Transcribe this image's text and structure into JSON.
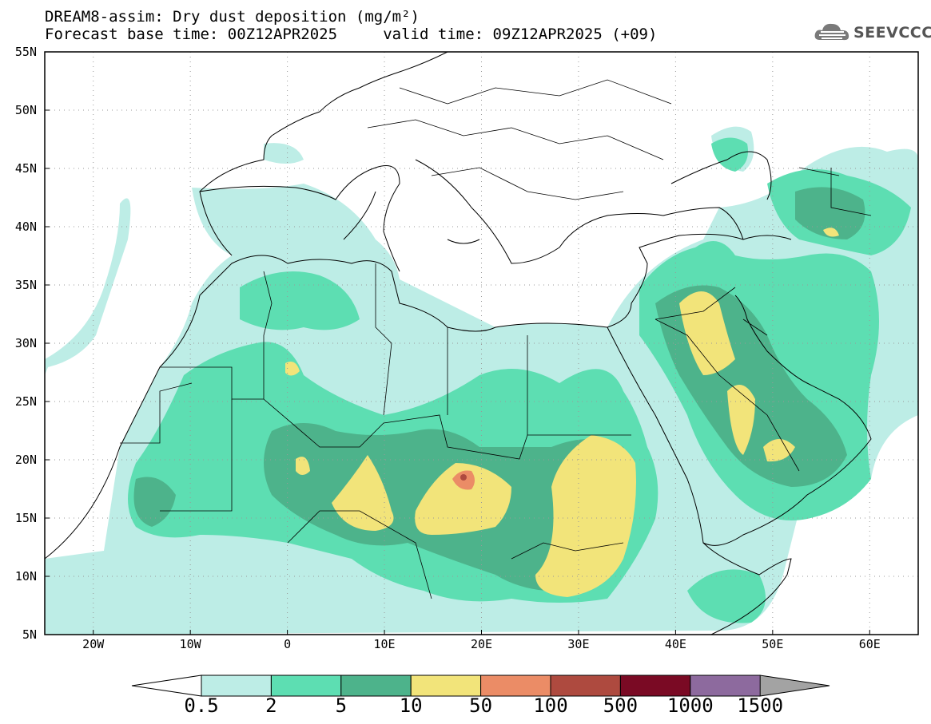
{
  "title": {
    "line1": "DREAM8-assim: Dry dust deposition (mg/m²)",
    "line2": "Forecast base time: 00Z12APR2025     valid time: 09Z12APR2025 (+09)"
  },
  "logo": {
    "text": "SEEVCCC",
    "icon": "cloud-icon"
  },
  "axes": {
    "lat_labels": [
      "55N",
      "50N",
      "45N",
      "40N",
      "35N",
      "30N",
      "25N",
      "20N",
      "15N",
      "10N",
      "5N"
    ],
    "lon_labels": [
      "20W",
      "10W",
      "0",
      "10E",
      "20E",
      "30E",
      "40E",
      "50E",
      "60E"
    ],
    "lat_range": [
      5,
      55
    ],
    "lon_range": [
      -25,
      65
    ],
    "grid": true
  },
  "colorbar": {
    "labels": [
      "0.5",
      "2",
      "5",
      "10",
      "50",
      "100",
      "500",
      "1000",
      "1500"
    ],
    "colors": [
      "#bdede6",
      "#5ddeb2",
      "#4db38b",
      "#f2e47a",
      "#eb8c66",
      "#ae4a3f",
      "#7a0a24",
      "#8d6a9e"
    ],
    "under_color": "#ffffff",
    "over_color": "#a3a3a3"
  },
  "map": {
    "region": "North Africa, Middle East and Europe",
    "dust_colors": {
      "c1": "#bdede6",
      "c2": "#5ddeb2",
      "c3": "#4db38b",
      "c4": "#f2e47a",
      "c5": "#eb8c66",
      "c6": "#ae4a3f"
    }
  }
}
